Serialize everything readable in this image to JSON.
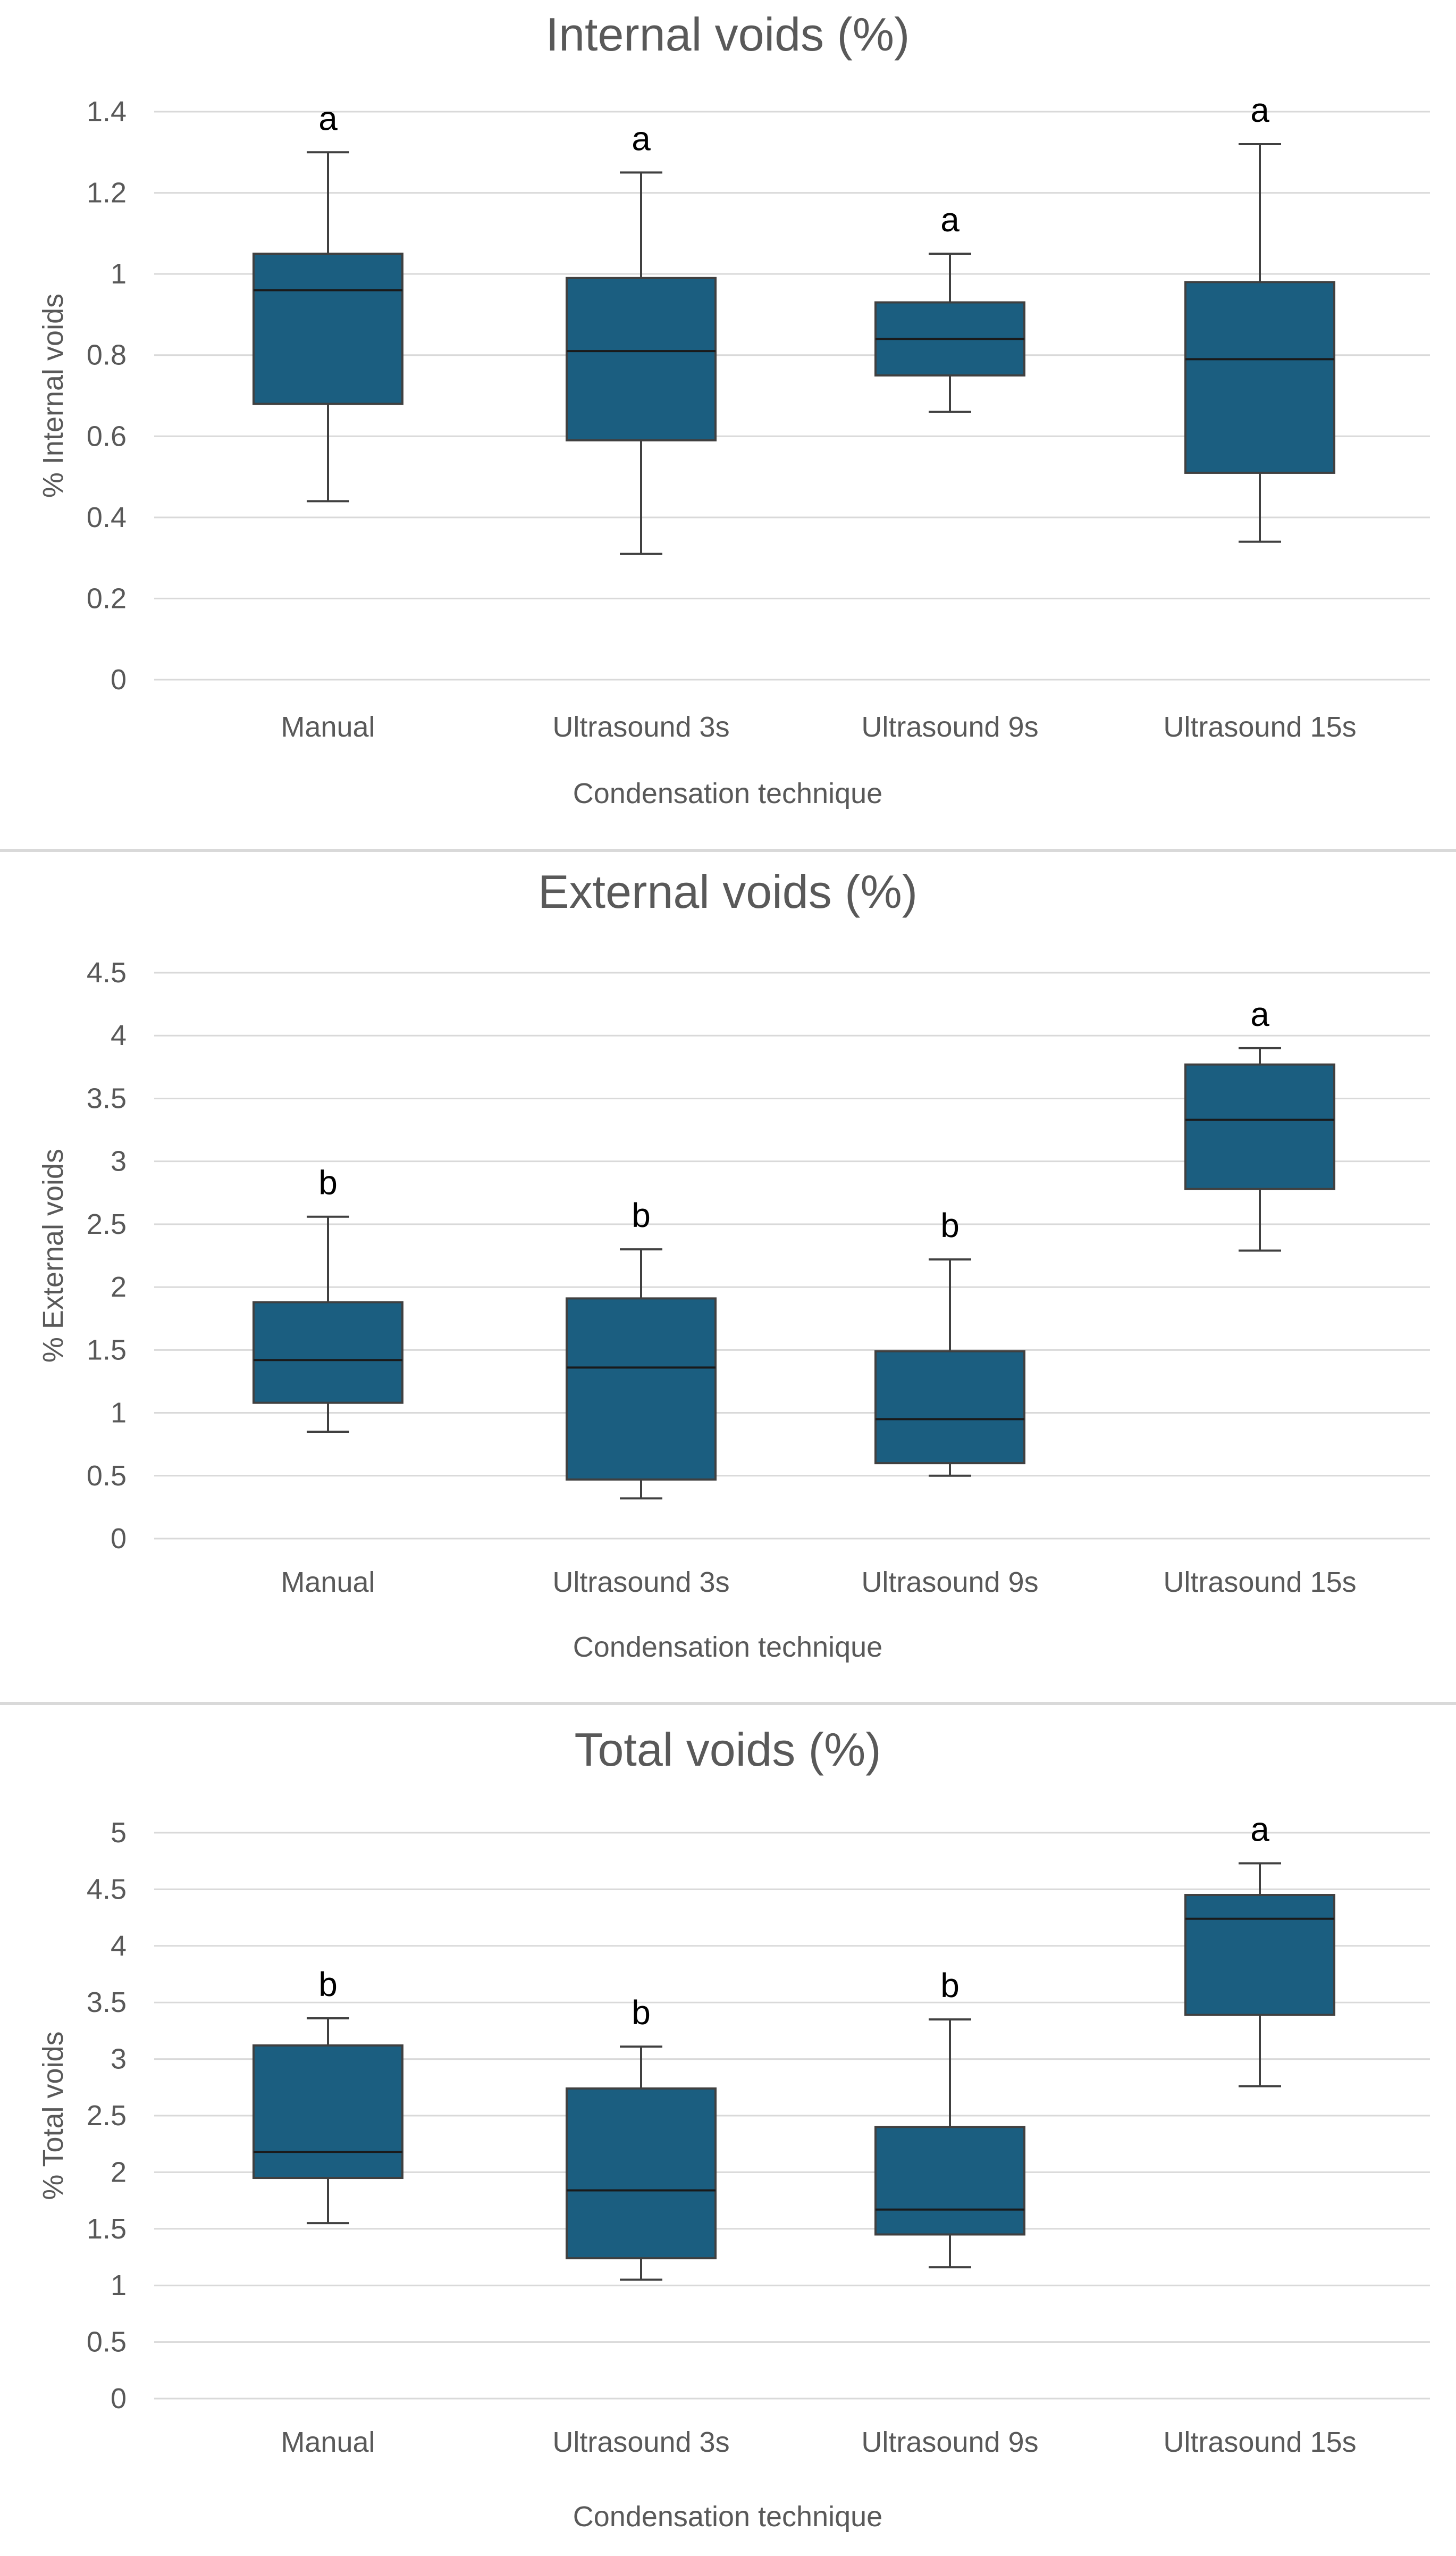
{
  "colors": {
    "box": "#1b5e80",
    "text": "#595959",
    "grid": "#d9d9d9"
  },
  "common": {
    "categories": [
      "Manual",
      "Ultrasound 3s",
      "Ultrasound 9s",
      "Ultrasound 15s"
    ],
    "xlabel": "Condensation technique"
  },
  "chart_data": [
    {
      "type": "box",
      "title": "Internal voids (%)",
      "xlabel": "Condensation technique",
      "ylabel": "% Internal voids",
      "ylim": [
        0,
        1.4
      ],
      "yticks": [
        "0",
        "0.2",
        "0.4",
        "0.6",
        "0.8",
        "1",
        "1.2",
        "1.4"
      ],
      "categories": [
        "Manual",
        "Ultrasound 3s",
        "Ultrasound 9s",
        "Ultrasound 15s"
      ],
      "boxes": [
        {
          "min": 0.44,
          "q1": 0.68,
          "median": 0.96,
          "q3": 1.05,
          "max": 1.3,
          "label": "a"
        },
        {
          "min": 0.31,
          "q1": 0.59,
          "median": 0.81,
          "q3": 0.99,
          "max": 1.25,
          "label": "a"
        },
        {
          "min": 0.66,
          "q1": 0.75,
          "median": 0.84,
          "q3": 0.93,
          "max": 1.05,
          "label": "a"
        },
        {
          "min": 0.34,
          "q1": 0.51,
          "median": 0.79,
          "q3": 0.98,
          "max": 1.32,
          "label": "a"
        }
      ]
    },
    {
      "type": "box",
      "title": "External voids (%)",
      "xlabel": "Condensation technique",
      "ylabel": "% External voids",
      "ylim": [
        0,
        4.5
      ],
      "yticks": [
        "0",
        "0.5",
        "1",
        "1.5",
        "2",
        "2.5",
        "3",
        "3.5",
        "4",
        "4.5"
      ],
      "categories": [
        "Manual",
        "Ultrasound 3s",
        "Ultrasound 9s",
        "Ultrasound 15s"
      ],
      "boxes": [
        {
          "min": 0.85,
          "q1": 1.08,
          "median": 1.42,
          "q3": 1.88,
          "max": 2.56,
          "label": "b"
        },
        {
          "min": 0.32,
          "q1": 0.47,
          "median": 1.36,
          "q3": 1.91,
          "max": 2.3,
          "label": "b"
        },
        {
          "min": 0.5,
          "q1": 0.6,
          "median": 0.95,
          "q3": 1.49,
          "max": 2.22,
          "label": "b"
        },
        {
          "min": 2.29,
          "q1": 2.78,
          "median": 3.33,
          "q3": 3.77,
          "max": 3.9,
          "label": "a"
        }
      ]
    },
    {
      "type": "box",
      "title": "Total voids (%)",
      "xlabel": "Condensation technique",
      "ylabel": "% Total voids",
      "ylim": [
        0,
        5
      ],
      "yticks": [
        "0",
        "0.5",
        "1",
        "1.5",
        "2",
        "2.5",
        "3",
        "3.5",
        "4",
        "4.5",
        "5"
      ],
      "categories": [
        "Manual",
        "Ultrasound 3s",
        "Ultrasound 9s",
        "Ultrasound 15s"
      ],
      "boxes": [
        {
          "min": 1.55,
          "q1": 1.95,
          "median": 2.18,
          "q3": 3.12,
          "max": 3.36,
          "label": "b"
        },
        {
          "min": 1.05,
          "q1": 1.24,
          "median": 1.84,
          "q3": 2.74,
          "max": 3.11,
          "label": "b"
        },
        {
          "min": 1.16,
          "q1": 1.45,
          "median": 1.67,
          "q3": 2.4,
          "max": 3.35,
          "label": "b"
        },
        {
          "min": 2.76,
          "q1": 3.39,
          "median": 4.24,
          "q3": 4.45,
          "max": 4.73,
          "label": "a"
        }
      ]
    }
  ]
}
